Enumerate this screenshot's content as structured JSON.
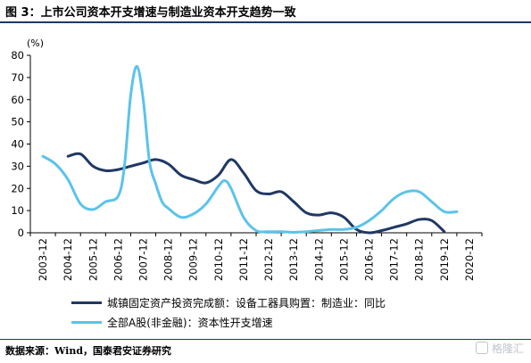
{
  "figure": {
    "title": "图 3：上市公司资本开支增速与制造业资本开支趋势一致",
    "source": "数据来源：Wind，国泰君安证券研究",
    "watermark": "格隆汇"
  },
  "colors": {
    "series1": "#1f3864",
    "series2": "#5bc3ea",
    "axis": "#000000",
    "rule": "#1f3864"
  },
  "chart_data": {
    "type": "line",
    "unit": "(%)",
    "x": [
      "2003-12",
      "2004-12",
      "2005-12",
      "2006-12",
      "2007-12",
      "2008-12",
      "2009-12",
      "2010-12",
      "2011-12",
      "2012-12",
      "2013-12",
      "2014-12",
      "2015-12",
      "2016-12",
      "2017-12",
      "2018-12",
      "2019-12",
      "2020-12"
    ],
    "ylim": [
      0,
      80
    ],
    "yticks": [
      "0",
      "10",
      "20",
      "30",
      "40",
      "50",
      "60",
      "70",
      "80"
    ],
    "grid": false,
    "legend_position": "bottom",
    "series": [
      {
        "name": "城镇固定资产投资完成额：设备工器具购置：制造业：同比",
        "color": "#1f3864",
        "points": [
          [
            1.0,
            34.5
          ],
          [
            1.5,
            35.5
          ],
          [
            2.0,
            30.0
          ],
          [
            2.5,
            28.0
          ],
          [
            3.0,
            28.5
          ],
          [
            3.5,
            30.0
          ],
          [
            4.0,
            31.5
          ],
          [
            4.5,
            33.0
          ],
          [
            5.0,
            31.0
          ],
          [
            5.5,
            26.0
          ],
          [
            6.0,
            24.0
          ],
          [
            6.5,
            22.5
          ],
          [
            7.0,
            26.0
          ],
          [
            7.5,
            33.0
          ],
          [
            8.0,
            27.0
          ],
          [
            8.5,
            19.0
          ],
          [
            9.0,
            17.5
          ],
          [
            9.5,
            18.5
          ],
          [
            10.0,
            14.0
          ],
          [
            10.5,
            9.0
          ],
          [
            11.0,
            8.0
          ],
          [
            11.5,
            9.0
          ],
          [
            12.0,
            7.0
          ],
          [
            12.5,
            1.5
          ],
          [
            13.0,
            0.0
          ],
          [
            13.5,
            1.0
          ],
          [
            14.0,
            2.5
          ],
          [
            14.5,
            4.0
          ],
          [
            15.0,
            6.0
          ],
          [
            15.5,
            5.5
          ],
          [
            16.0,
            0.5
          ]
        ]
      },
      {
        "name": "全部A股(非金融)：资本性开支增速",
        "color": "#5bc3ea",
        "points": [
          [
            0.0,
            34.5
          ],
          [
            0.5,
            31.0
          ],
          [
            1.0,
            24.0
          ],
          [
            1.5,
            13.0
          ],
          [
            2.0,
            10.5
          ],
          [
            2.5,
            14.0
          ],
          [
            3.0,
            16.5
          ],
          [
            3.25,
            30.0
          ],
          [
            3.5,
            62.0
          ],
          [
            3.75,
            75.0
          ],
          [
            4.0,
            60.0
          ],
          [
            4.25,
            32.0
          ],
          [
            4.5,
            22.0
          ],
          [
            4.75,
            14.0
          ],
          [
            5.0,
            11.0
          ],
          [
            5.5,
            7.0
          ],
          [
            6.0,
            8.5
          ],
          [
            6.5,
            13.0
          ],
          [
            7.0,
            21.0
          ],
          [
            7.25,
            23.5
          ],
          [
            7.5,
            20.0
          ],
          [
            8.0,
            7.0
          ],
          [
            8.5,
            1.0
          ],
          [
            9.0,
            0.5
          ],
          [
            9.5,
            0.5
          ],
          [
            10.0,
            0.2
          ],
          [
            10.5,
            0.5
          ],
          [
            11.0,
            1.0
          ],
          [
            11.5,
            1.5
          ],
          [
            12.0,
            1.5
          ],
          [
            12.5,
            2.5
          ],
          [
            13.0,
            5.5
          ],
          [
            13.5,
            10.0
          ],
          [
            14.0,
            15.5
          ],
          [
            14.5,
            18.5
          ],
          [
            15.0,
            18.5
          ],
          [
            15.5,
            14.0
          ],
          [
            16.0,
            9.5
          ],
          [
            16.5,
            9.5
          ]
        ]
      }
    ]
  }
}
